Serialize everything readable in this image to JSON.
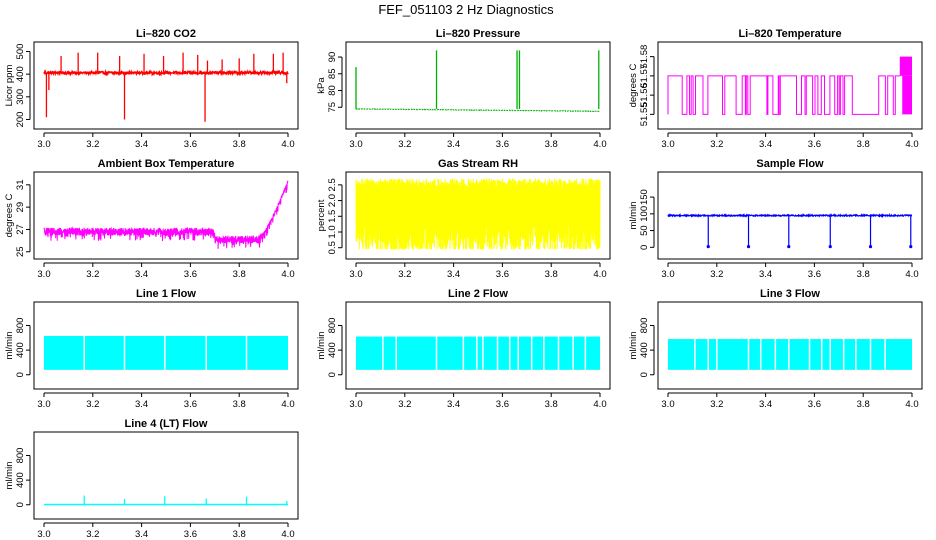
{
  "figure": {
    "title": "FEF_051103  2 Hz Diagnostics"
  },
  "chart_data": [
    {
      "id": "co2",
      "type": "line",
      "title": "Li–820 CO2",
      "ylabel": "Licor ppm",
      "color": "#ff0000",
      "xlim": [
        3.0,
        4.0
      ],
      "ylim": [
        180,
        520
      ],
      "xticks": [
        3.0,
        3.2,
        3.4,
        3.6,
        3.8,
        4.0
      ],
      "xtick_labels": [
        "3.0",
        "3.2",
        "3.4",
        "3.6",
        "3.8",
        "4.0"
      ],
      "yticks": [
        200,
        300,
        400,
        500
      ],
      "ytick_labels": [
        "200",
        "300",
        "400",
        "500"
      ],
      "series": [
        {
          "name": "CO2",
          "baseline": 405,
          "noise": 12,
          "spikes": [
            {
              "x": 3.01,
              "y": 210
            },
            {
              "x": 3.02,
              "y": 330
            },
            {
              "x": 3.07,
              "y": 480
            },
            {
              "x": 3.14,
              "y": 495
            },
            {
              "x": 3.22,
              "y": 495
            },
            {
              "x": 3.31,
              "y": 480
            },
            {
              "x": 3.33,
              "y": 200
            },
            {
              "x": 3.41,
              "y": 490
            },
            {
              "x": 3.49,
              "y": 480
            },
            {
              "x": 3.57,
              "y": 495
            },
            {
              "x": 3.63,
              "y": 485
            },
            {
              "x": 3.66,
              "y": 190
            },
            {
              "x": 3.67,
              "y": 460
            },
            {
              "x": 3.73,
              "y": 465
            },
            {
              "x": 3.8,
              "y": 470
            },
            {
              "x": 3.86,
              "y": 490
            },
            {
              "x": 3.94,
              "y": 490
            },
            {
              "x": 3.98,
              "y": 495
            },
            {
              "x": 3.995,
              "y": 360
            }
          ]
        }
      ]
    },
    {
      "id": "pressure",
      "type": "line",
      "title": "Li–820 Pressure",
      "ylabel": "kPa",
      "color": "#00b000",
      "xlim": [
        3.0,
        4.0
      ],
      "ylim": [
        70,
        93
      ],
      "xticks": [
        3.0,
        3.2,
        3.4,
        3.6,
        3.8,
        4.0
      ],
      "xtick_labels": [
        "3.0",
        "3.2",
        "3.4",
        "3.6",
        "3.8",
        "4.0"
      ],
      "yticks": [
        75,
        80,
        85,
        90
      ],
      "ytick_labels": [
        "75",
        "80",
        "85",
        "90"
      ],
      "series": [
        {
          "name": "Pressure",
          "start": 74.5,
          "end": 73.8,
          "noise": 0.15,
          "spikes": [
            {
              "x": 3.0,
              "y": 87
            },
            {
              "x": 3.33,
              "y": 92
            },
            {
              "x": 3.66,
              "y": 92
            },
            {
              "x": 3.67,
              "y": 92
            },
            {
              "x": 3.995,
              "y": 92
            }
          ]
        }
      ]
    },
    {
      "id": "licor_temp",
      "type": "step",
      "title": "Li–820 Temperature",
      "ylabel": "degrees C",
      "color": "#ff00ff",
      "xlim": [
        3.0,
        4.0
      ],
      "ylim": [
        51.545,
        51.585
      ],
      "xticks": [
        3.0,
        3.2,
        3.4,
        3.6,
        3.8,
        4.0
      ],
      "xtick_labels": [
        "3.0",
        "3.2",
        "3.4",
        "3.6",
        "3.8",
        "4.0"
      ],
      "yticks": [
        51.55,
        51.56,
        51.57,
        51.58
      ],
      "ytick_labels": [
        "51.55",
        "51.56",
        "51.57",
        "51.58"
      ],
      "series": [
        {
          "name": "Temperature",
          "levels": [
            51.55,
            51.57
          ],
          "high_level": 51.58,
          "toggle_until": 3.75,
          "sparse_from": 3.83,
          "high_from": 3.95
        }
      ]
    },
    {
      "id": "box_temp",
      "type": "line",
      "title": "Ambient Box Temperature",
      "ylabel": "degrees C",
      "color": "#ff00ff",
      "xlim": [
        3.0,
        4.0
      ],
      "ylim": [
        24.8,
        31.7
      ],
      "xticks": [
        3.0,
        3.2,
        3.4,
        3.6,
        3.8,
        4.0
      ],
      "xtick_labels": [
        "3.0",
        "3.2",
        "3.4",
        "3.6",
        "3.8",
        "4.0"
      ],
      "yticks": [
        25,
        27,
        29,
        31
      ],
      "ytick_labels": [
        "25",
        "27",
        "29",
        "31"
      ],
      "series": [
        {
          "name": "Box temperature",
          "baseline": 26.8,
          "dip_value": 26.1,
          "dip_from": 3.7,
          "dip_to": 3.88,
          "rise_from": 3.88,
          "end_value": 31.3,
          "noise": 0.35
        }
      ]
    },
    {
      "id": "rh",
      "type": "line",
      "title": "Gas Stream RH",
      "ylabel": "percent",
      "color": "#ffff00",
      "xlim": [
        3.0,
        4.0
      ],
      "ylim": [
        0.3,
        2.75
      ],
      "xticks": [
        3.0,
        3.2,
        3.4,
        3.6,
        3.8,
        4.0
      ],
      "xtick_labels": [
        "3.0",
        "3.2",
        "3.4",
        "3.6",
        "3.8",
        "4.0"
      ],
      "yticks": [
        0.5,
        1.0,
        1.5,
        2.0,
        2.5
      ],
      "ytick_labels": [
        "0.5",
        "1.0",
        "1.5",
        "2.0",
        "2.5"
      ],
      "series": [
        {
          "name": "RH",
          "upper": 2.55,
          "lower": 1.0,
          "min": 0.45,
          "max": 2.7
        }
      ]
    },
    {
      "id": "sample_flow",
      "type": "line",
      "title": "Sample Flow",
      "ylabel": "ml/min",
      "color": "#0000ff",
      "xlim": [
        3.0,
        4.0
      ],
      "ylim": [
        -20,
        210
      ],
      "xticks": [
        3.0,
        3.2,
        3.4,
        3.6,
        3.8,
        4.0
      ],
      "xtick_labels": [
        "3.0",
        "3.2",
        "3.4",
        "3.6",
        "3.8",
        "4.0"
      ],
      "yticks": [
        0,
        50,
        100,
        150
      ],
      "ytick_labels": [
        "0",
        "50",
        "100",
        "150"
      ],
      "series": [
        {
          "name": "Sample flow",
          "baseline": 95,
          "noise": 2,
          "dips": [
            {
              "x": 3.165,
              "y": 2
            },
            {
              "x": 3.33,
              "y": 2
            },
            {
              "x": 3.495,
              "y": 2
            },
            {
              "x": 3.665,
              "y": 2
            },
            {
              "x": 3.83,
              "y": 2
            },
            {
              "x": 3.995,
              "y": 2
            }
          ]
        }
      ]
    },
    {
      "id": "line1",
      "type": "band",
      "title": "Line 1 Flow",
      "ylabel": "ml/min",
      "color": "#00ffff",
      "xlim": [
        3.0,
        4.0
      ],
      "ylim": [
        -150,
        1100
      ],
      "xticks": [
        3.0,
        3.2,
        3.4,
        3.6,
        3.8,
        4.0
      ],
      "xtick_labels": [
        "3.0",
        "3.2",
        "3.4",
        "3.6",
        "3.8",
        "4.0"
      ],
      "yticks": [
        0,
        400,
        800
      ],
      "ytick_labels": [
        "0",
        "400",
        "800"
      ],
      "series": [
        {
          "name": "Line 1",
          "low": 80,
          "high": 630,
          "gaps": [
            3.165,
            3.33,
            3.495,
            3.665,
            3.83
          ]
        }
      ]
    },
    {
      "id": "line2",
      "type": "band",
      "title": "Line 2 Flow",
      "ylabel": "ml/min",
      "color": "#00ffff",
      "xlim": [
        3.0,
        4.0
      ],
      "ylim": [
        -150,
        1100
      ],
      "xticks": [
        3.0,
        3.2,
        3.4,
        3.6,
        3.8,
        4.0
      ],
      "xtick_labels": [
        "3.0",
        "3.2",
        "3.4",
        "3.6",
        "3.8",
        "4.0"
      ],
      "yticks": [
        0,
        400,
        800
      ],
      "ytick_labels": [
        "0",
        "400",
        "800"
      ],
      "series": [
        {
          "name": "Line 2",
          "low": 80,
          "high": 620,
          "gaps": [
            3.11,
            3.165,
            3.33,
            3.44,
            3.495,
            3.52,
            3.58,
            3.63,
            3.665,
            3.72,
            3.77,
            3.83,
            3.89,
            3.94
          ]
        }
      ]
    },
    {
      "id": "line3",
      "type": "band",
      "title": "Line 3 Flow",
      "ylabel": "ml/min",
      "color": "#00ffff",
      "xlim": [
        3.0,
        4.0
      ],
      "ylim": [
        -150,
        1100
      ],
      "xticks": [
        3.0,
        3.2,
        3.4,
        3.6,
        3.8,
        4.0
      ],
      "xtick_labels": [
        "3.0",
        "3.2",
        "3.4",
        "3.6",
        "3.8",
        "4.0"
      ],
      "yticks": [
        0,
        400,
        800
      ],
      "ytick_labels": [
        "0",
        "400",
        "800"
      ],
      "series": [
        {
          "name": "Line 3",
          "low": 80,
          "high": 580,
          "gaps": [
            3.11,
            3.165,
            3.2,
            3.33,
            3.38,
            3.44,
            3.495,
            3.58,
            3.63,
            3.665,
            3.72,
            3.77,
            3.83,
            3.89
          ]
        }
      ]
    },
    {
      "id": "line4",
      "type": "line",
      "title": "Line 4 (LT) Flow",
      "ylabel": "ml/min",
      "color": "#00ffff",
      "xlim": [
        3.0,
        4.0
      ],
      "ylim": [
        -150,
        1100
      ],
      "xticks": [
        3.0,
        3.2,
        3.4,
        3.6,
        3.8,
        4.0
      ],
      "xtick_labels": [
        "3.0",
        "3.2",
        "3.4",
        "3.6",
        "3.8",
        "4.0"
      ],
      "yticks": [
        0,
        400,
        800
      ],
      "ytick_labels": [
        "0",
        "400",
        "800"
      ],
      "series": [
        {
          "name": "Line 4",
          "baseline": 5,
          "spikes": [
            {
              "x": 3.165,
              "y": 150
            },
            {
              "x": 3.33,
              "y": 90
            },
            {
              "x": 3.495,
              "y": 140
            },
            {
              "x": 3.665,
              "y": 100
            },
            {
              "x": 3.83,
              "y": 130
            },
            {
              "x": 3.995,
              "y": 60
            }
          ]
        }
      ]
    }
  ]
}
